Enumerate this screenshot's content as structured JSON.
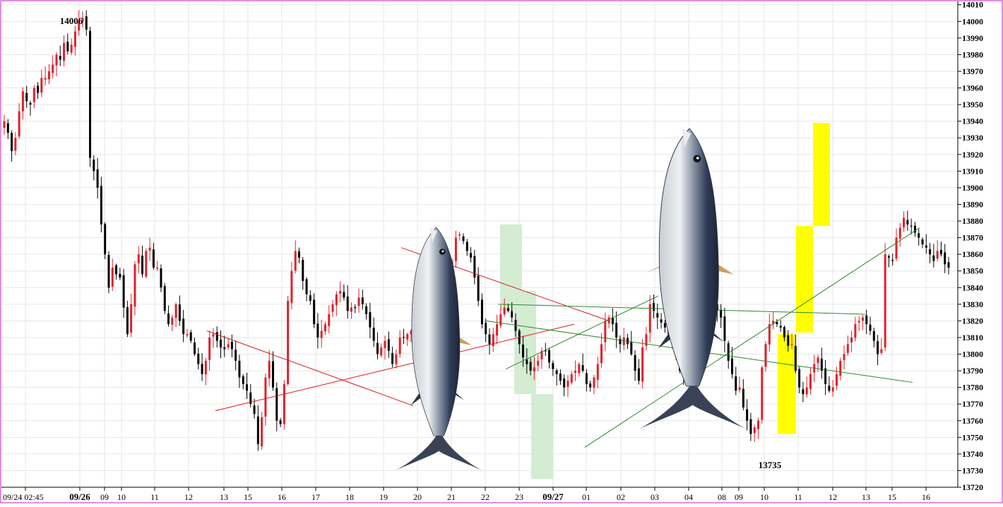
{
  "chart_data": {
    "type": "candlestick",
    "title": "",
    "ylim": [
      13720,
      14012
    ],
    "y_ticks": [
      14010,
      14000,
      13990,
      13980,
      13970,
      13960,
      13950,
      13940,
      13930,
      13920,
      13910,
      13900,
      13890,
      13880,
      13870,
      13860,
      13850,
      13840,
      13830,
      13820,
      13810,
      13800,
      13790,
      13780,
      13770,
      13760,
      13750,
      13740,
      13730,
      13720
    ],
    "y_tick_labels": [
      "14010",
      "14000",
      "13990",
      "13980",
      "13970",
      "13960",
      "13950",
      "13940",
      "13930",
      "13920",
      "13910",
      "13900",
      "13890",
      "13880",
      "13870",
      "13860",
      "13850",
      "13840",
      "13830",
      "13820",
      "13810",
      "13800",
      "13790",
      "13780",
      "13770",
      "13760",
      "13750",
      "13740",
      "13730",
      "13720"
    ],
    "x_tick_labels": [
      "09/24 02:45",
      "09/26",
      "09",
      "10",
      "11",
      "12",
      "13",
      "15",
      "16",
      "17",
      "18",
      "19",
      "20",
      "21",
      "22",
      "23",
      "09/27",
      "01",
      "02",
      "03",
      "04",
      "08",
      "09",
      "10",
      "11",
      "12",
      "13",
      "15",
      "16"
    ],
    "bold_x_labels": [
      "09/26",
      "09/27"
    ],
    "grid": true,
    "annotations": [
      {
        "text": "14006",
        "value": 14006
      },
      {
        "text": "13735",
        "value": 13735
      }
    ],
    "up_color": "#e0202a",
    "down_color": "#000000",
    "closes": [
      13940,
      13933,
      13922,
      13930,
      13946,
      13958,
      13952,
      13950,
      13960,
      13957,
      13966,
      13966,
      13970,
      13974,
      13980,
      13977,
      13987,
      13982,
      13986,
      13994,
      14000,
      14002,
      13995,
      13918,
      13910,
      13900,
      13878,
      13860,
      13840,
      13852,
      13848,
      13846,
      13828,
      13812,
      13830,
      13854,
      13860,
      13848,
      13862,
      13864,
      13852,
      13852,
      13840,
      13826,
      13818,
      13822,
      13830,
      13820,
      13812,
      13812,
      13808,
      13800,
      13794,
      13788,
      13796,
      13810,
      13812,
      13808,
      13804,
      13803,
      13806,
      13803,
      13796,
      13786,
      13782,
      13778,
      13770,
      13764,
      13746,
      13762,
      13786,
      13796,
      13780,
      13760,
      13758,
      13782,
      13832,
      13850,
      13862,
      13858,
      13844,
      13836,
      13832,
      13818,
      13810,
      13814,
      13818,
      13824,
      13830,
      13836,
      13838,
      13834,
      13826,
      13828,
      13828,
      13834,
      13830,
      13824,
      13816,
      13808,
      13800,
      13804,
      13808,
      13802,
      13794,
      13800,
      13810,
      13810,
      13812,
      13814,
      13808,
      13802,
      13795,
      13788,
      13796,
      13806,
      13814,
      13816,
      13822,
      13842,
      13856,
      13870,
      13872,
      13868,
      13862,
      13858,
      13846,
      13832,
      13818,
      13812,
      13806,
      13812,
      13818,
      13824,
      13828,
      13826,
      13822,
      13814,
      13806,
      13798,
      13794,
      13790,
      13792,
      13796,
      13802,
      13802,
      13795,
      13791,
      13788,
      13784,
      13780,
      13784,
      13788,
      13790,
      13794,
      13790,
      13782,
      13780,
      13786,
      13794,
      13806,
      13820,
      13822,
      13818,
      13810,
      13806,
      13810,
      13806,
      13800,
      13790,
      13784,
      13804,
      13812,
      13830,
      13826,
      13822,
      13819,
      13816,
      13812,
      13806,
      13798,
      13790,
      13786,
      13790,
      13794,
      13808,
      13812,
      13814,
      13826,
      13834,
      13830,
      13826,
      13822,
      13808,
      13796,
      13788,
      13778,
      13780,
      13768,
      13760,
      13752,
      13756,
      13760,
      13792,
      13806,
      13818,
      13820,
      13818,
      13816,
      13810,
      13805,
      13806,
      13790,
      13780,
      13776,
      13780,
      13788,
      13794,
      13798,
      13790,
      13782,
      13778,
      13780,
      13788,
      13796,
      13800,
      13806,
      13810,
      13818,
      13820,
      13822,
      13818,
      13814,
      13808,
      13800,
      13803,
      13860,
      13858,
      13856,
      13870,
      13876,
      13882,
      13878,
      13877,
      13873,
      13870,
      13866,
      13864,
      13860,
      13856,
      13862,
      13860,
      13854,
      13852
    ],
    "trendlines": [
      {
        "color": "#dd1a1a",
        "from": [
          13814,
          13820
        ],
        "to": [
          13769,
          13768
        ]
      },
      {
        "color": "#dd1a1a",
        "from": [
          13766,
          13880
        ],
        "to": [
          13818,
          13880
        ]
      },
      {
        "color": "#dd1a1a",
        "from": [
          13864,
          13820
        ],
        "to": [
          13820,
          13820
        ]
      },
      {
        "color": "#2a8a2a",
        "from": [
          13820,
          13828
        ],
        "to": [
          13783,
          13793
        ]
      },
      {
        "color": "#2a8a2a",
        "from": [
          13791,
          13744
        ],
        "to": [
          13835,
          13870
        ]
      },
      {
        "color": "#2a8a2a",
        "from": [
          13830,
          13800
        ],
        "to": [
          13824,
          13800
        ]
      },
      {
        "color": "#2a8a2a",
        "from": [
          13744,
          13750
        ],
        "to": [
          13876,
          13880
        ]
      }
    ],
    "shaded_zones": [
      {
        "color": "#d4ecd2",
        "low": 13826,
        "high": 13878
      },
      {
        "color": "#d4ecd2",
        "low": 13776,
        "high": 13838
      },
      {
        "color": "#d4ecd2",
        "low": 13725,
        "high": 13776
      },
      {
        "color": "#ffff00",
        "low": 13752,
        "high": 13812
      },
      {
        "color": "#ffff00",
        "low": 13813,
        "high": 13877
      },
      {
        "color": "#ffff00",
        "low": 13877,
        "high": 13939
      }
    ]
  }
}
